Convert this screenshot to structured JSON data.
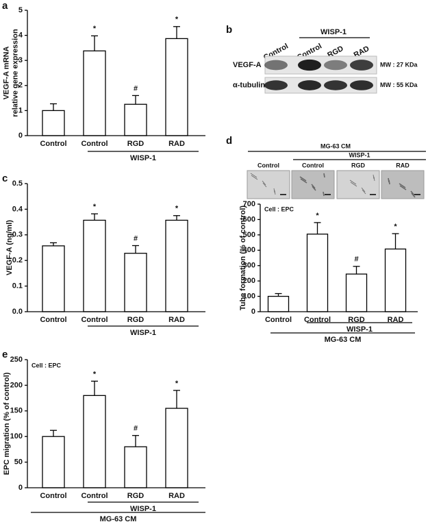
{
  "chart_data": [
    {
      "type": "bar",
      "panel": "a",
      "ylabel": [
        "VEGF-A mRNA",
        "relative gene expression"
      ],
      "categories": [
        "Control",
        "Control",
        "RGD",
        "RAD"
      ],
      "values": [
        1.0,
        3.38,
        1.25,
        3.87
      ],
      "errors": [
        0.27,
        0.6,
        0.35,
        0.48
      ],
      "annotations": [
        null,
        "*",
        "#",
        "*"
      ],
      "ylim": [
        0,
        5
      ],
      "yticks": [
        0,
        1,
        2,
        3,
        4,
        5
      ],
      "groups": [
        "WISP-1"
      ],
      "color": "#ffffff"
    },
    {
      "type": "bar",
      "panel": "c",
      "ylabel": [
        "VEGF-A (ng/ml)"
      ],
      "categories": [
        "Control",
        "Control",
        "RGD",
        "RAD"
      ],
      "values": [
        0.257,
        0.357,
        0.228,
        0.357
      ],
      "errors": [
        0.012,
        0.025,
        0.03,
        0.018
      ],
      "annotations": [
        null,
        "*",
        "#",
        "*"
      ],
      "ylim": [
        0,
        0.5
      ],
      "yticks": [
        {
          "value": 0,
          "label": "0.0"
        },
        0.1,
        0.2,
        0.3,
        0.4,
        0.5
      ],
      "groups": [
        "WISP-1"
      ],
      "color": "#ffffff"
    },
    {
      "type": "bar",
      "panel": "d",
      "ylabel": [
        "Tube formation (% of control)"
      ],
      "note": "Cell : EPC",
      "categories": [
        "Control",
        "Control",
        "RGD",
        "RAD"
      ],
      "values": [
        100,
        505,
        245,
        408
      ],
      "errors": [
        18,
        75,
        50,
        100
      ],
      "annotations": [
        null,
        "*",
        "#",
        "*"
      ],
      "ylim": [
        0,
        700
      ],
      "yticks": [
        0,
        100,
        200,
        300,
        400,
        500,
        600,
        700
      ],
      "groups": [
        "WISP-1",
        "MG-63 CM"
      ],
      "color": "#ffffff"
    },
    {
      "type": "bar",
      "panel": "e",
      "ylabel": [
        "EPC migration (% of control)"
      ],
      "note": "Cell : EPC",
      "categories": [
        "Control",
        "Control",
        "RGD",
        "RAD"
      ],
      "values": [
        100,
        180,
        80,
        155
      ],
      "errors": [
        12,
        28,
        22,
        35
      ],
      "annotations": [
        null,
        "*",
        "#",
        "*"
      ],
      "ylim": [
        0,
        250
      ],
      "yticks": [
        0,
        50,
        100,
        150,
        200,
        250
      ],
      "groups": [
        "WISP-1",
        "MG-63 CM"
      ],
      "color": "#ffffff"
    }
  ],
  "blot": {
    "panel": "b",
    "group": "WISP-1",
    "lanes": [
      "Control",
      "Control",
      "RGD",
      "RAD"
    ],
    "rows": [
      {
        "label": "VEGF-A",
        "mw": "MW : 27 KDa"
      },
      {
        "label": "α-tubulin",
        "mw": "MW : 55 KDa"
      }
    ]
  },
  "micrographs": {
    "headers": [
      "MG-63 CM",
      "WISP-1"
    ],
    "labels": [
      "Control",
      "Control",
      "RGD",
      "RAD"
    ]
  }
}
